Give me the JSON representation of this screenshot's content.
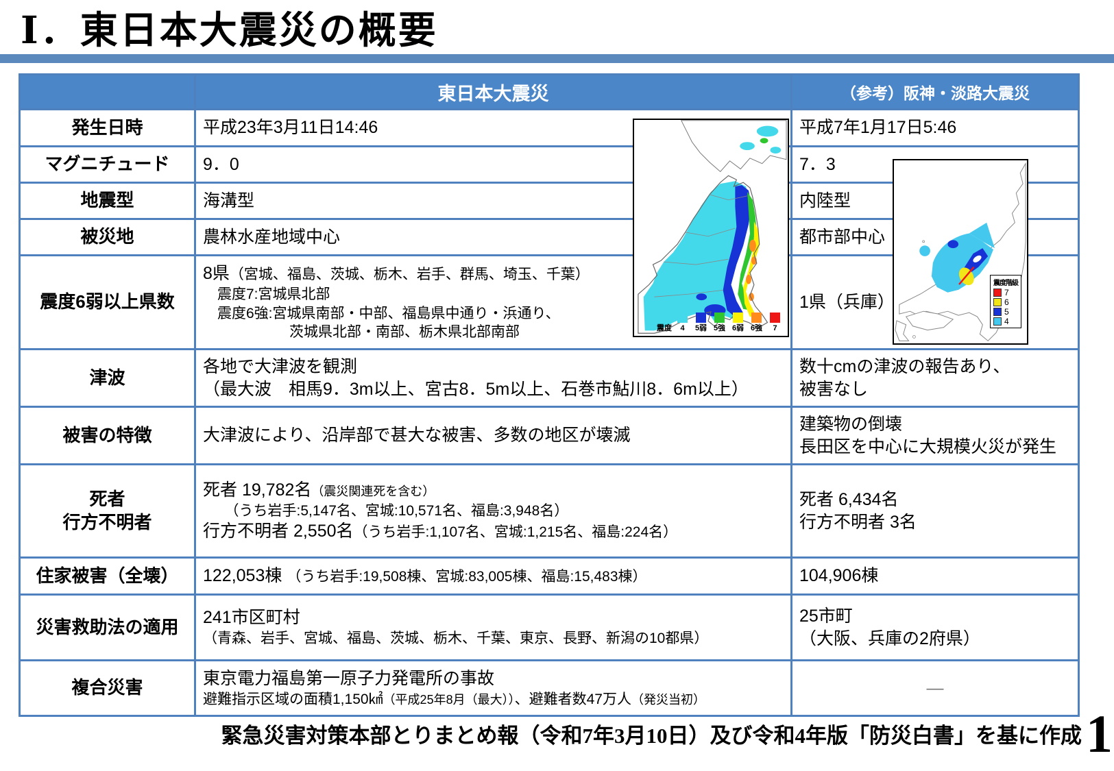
{
  "page": {
    "title": "Ⅰ．東日本大震災の概要",
    "footer_source": "緊急災害対策本部とりまとめ報（令和7年3月10日）及び令和4年版「防災白書」を基に作成",
    "page_number": "1"
  },
  "colors": {
    "accent_bar": "#5B88BD",
    "header_bg": "#4A86C8",
    "table_border": "#4E81BD",
    "intensity_4": "#44D9EA",
    "intensity_5weak": "#1733D6",
    "intensity_5strong": "#2FC62F",
    "intensity_6weak": "#FBF104",
    "intensity_6strong": "#FF8C1C",
    "intensity_7": "#EF1616"
  },
  "table": {
    "header": {
      "main": "東日本大震災",
      "ref": "（参考）阪神・淡路大震災"
    },
    "rows": [
      {
        "key": "datetime",
        "label": [
          "発生日時"
        ],
        "main": [
          [
            [
              "平成23年3月11日14:46",
              "n"
            ]
          ]
        ],
        "ref": [
          [
            [
              "平成7年1月17日5:46",
              "n"
            ]
          ]
        ]
      },
      {
        "key": "magnitude",
        "label": [
          "マグニチュード"
        ],
        "main": [
          [
            [
              "9．0",
              "n"
            ]
          ]
        ],
        "ref": [
          [
            [
              "7．3",
              "n"
            ]
          ]
        ]
      },
      {
        "key": "quake-type",
        "label": [
          "地震型"
        ],
        "main": [
          [
            [
              "海溝型",
              "n"
            ]
          ]
        ],
        "ref": [
          [
            [
              "内陸型",
              "n"
            ]
          ]
        ]
      },
      {
        "key": "stricken-area",
        "label": [
          "被災地"
        ],
        "main": [
          [
            [
              "農林水産地域中心",
              "n"
            ]
          ]
        ],
        "ref": [
          [
            [
              "都市部中心",
              "n"
            ]
          ]
        ]
      },
      {
        "key": "intensity-prefectures",
        "label": [
          "震度6弱以上県数"
        ],
        "main": [
          [
            [
              "8県",
              "n"
            ],
            [
              "（宮城、福島、茨城、栃木、岩手、群馬、埼玉、千葉）",
              "m"
            ]
          ],
          [
            [
              "　震度7:宮城県北部",
              "m"
            ]
          ],
          [
            [
              "　震度6強:宮城県南部・中部、福島県中通り・浜通り、",
              "m"
            ]
          ],
          [
            [
              "　　　　　　茨城県北部・南部、栃木県北部南部",
              "m"
            ]
          ]
        ],
        "ref": [
          [
            [
              "1県（兵庫）",
              "n"
            ]
          ]
        ]
      },
      {
        "key": "tsunami",
        "label": [
          "津波"
        ],
        "main": [
          [
            [
              "各地で大津波を観測",
              "n"
            ]
          ],
          [
            [
              "（最大波　相馬9．3m以上、宮古8．5m以上、石巻市鮎川8．6m以上）",
              "n"
            ]
          ]
        ],
        "ref": [
          [
            [
              "数十cmの津波の報告あり、",
              "n"
            ]
          ],
          [
            [
              "被害なし",
              "n"
            ]
          ]
        ]
      },
      {
        "key": "damage-features",
        "label": [
          "被害の特徴"
        ],
        "main": [
          [
            [
              "大津波により、沿岸部で甚大な被害、多数の地区が壊滅",
              "n"
            ]
          ]
        ],
        "ref": [
          [
            [
              "建築物の倒壊",
              "n"
            ]
          ],
          [
            [
              "長田区を中心に大規模火災が発生",
              "n"
            ]
          ]
        ]
      },
      {
        "key": "casualties",
        "label": [
          "死者",
          "行方不明者"
        ],
        "main": [
          [
            [
              "死者 19,782名",
              "n"
            ],
            [
              "（震災関連死を含む）",
              "s"
            ]
          ],
          [
            [
              "　　（うち岩手:5,147名、宮城:10,571名、福島:3,948名）",
              "m"
            ]
          ],
          [
            [
              "行方不明者 2,550名",
              "n"
            ],
            [
              "（うち岩手:1,107名、宮城:1,215名、福島:224名）",
              "m"
            ]
          ]
        ],
        "ref": [
          [
            [
              "死者 6,434名",
              "n"
            ]
          ],
          [
            [
              "行方不明者 3名",
              "n"
            ]
          ]
        ]
      },
      {
        "key": "housing-damage",
        "label": [
          "住家被害（全壊）"
        ],
        "main": [
          [
            [
              "122,053棟 ",
              "n"
            ],
            [
              "（うち岩手:19,508棟、宮城:83,005棟、福島:15,483棟）",
              "m"
            ]
          ]
        ],
        "ref": [
          [
            [
              "104,906棟",
              "n"
            ]
          ]
        ]
      },
      {
        "key": "rescue-act",
        "label": [
          "災害救助法の適用"
        ],
        "main": [
          [
            [
              "241市区町村",
              "n"
            ]
          ],
          [
            [
              "（青森、岩手、宮城、福島、茨城、栃木、千葉、東京、長野、新潟の10都県）",
              "m"
            ]
          ]
        ],
        "ref": [
          [
            [
              "25市町",
              "n"
            ]
          ],
          [
            [
              "（大阪、兵庫の2府県）",
              "n"
            ]
          ]
        ]
      },
      {
        "key": "compound-disaster",
        "label": [
          "複合災害"
        ],
        "main": [
          [
            [
              "東京電力福島第一原子力発電所の事故",
              "n"
            ]
          ],
          [
            [
              "避難指示区域の面積1,150㎢",
              "m"
            ],
            [
              "（平成25年8月（最大））",
              "s"
            ],
            [
              "、避難者数47万人",
              "m"
            ],
            [
              "（発災当初）",
              "s"
            ]
          ]
        ],
        "ref": [
          [
            [
              "―",
              "dash"
            ]
          ]
        ]
      }
    ]
  },
  "maps": {
    "tohoku": {
      "name": "東日本大震災 震度分布図",
      "legend_prefix": "震度",
      "legend": [
        {
          "label": "4",
          "color": "#44D9EA"
        },
        {
          "label": "5弱",
          "color": "#1733D6"
        },
        {
          "label": "5強",
          "color": "#2FC62F"
        },
        {
          "label": "6弱",
          "color": "#FBF104"
        },
        {
          "label": "6強",
          "color": "#FF8C1C"
        },
        {
          "label": "7",
          "color": "#EF1616"
        }
      ]
    },
    "hanshin": {
      "name": "阪神・淡路大震災 震度分布図",
      "legend_title": "震度階級",
      "legend": [
        {
          "label": "7",
          "color": "#EF1616"
        },
        {
          "label": "6",
          "color": "#F0E618"
        },
        {
          "label": "5",
          "color": "#1733D6"
        },
        {
          "label": "4",
          "color": "#44C8EE"
        }
      ]
    }
  }
}
